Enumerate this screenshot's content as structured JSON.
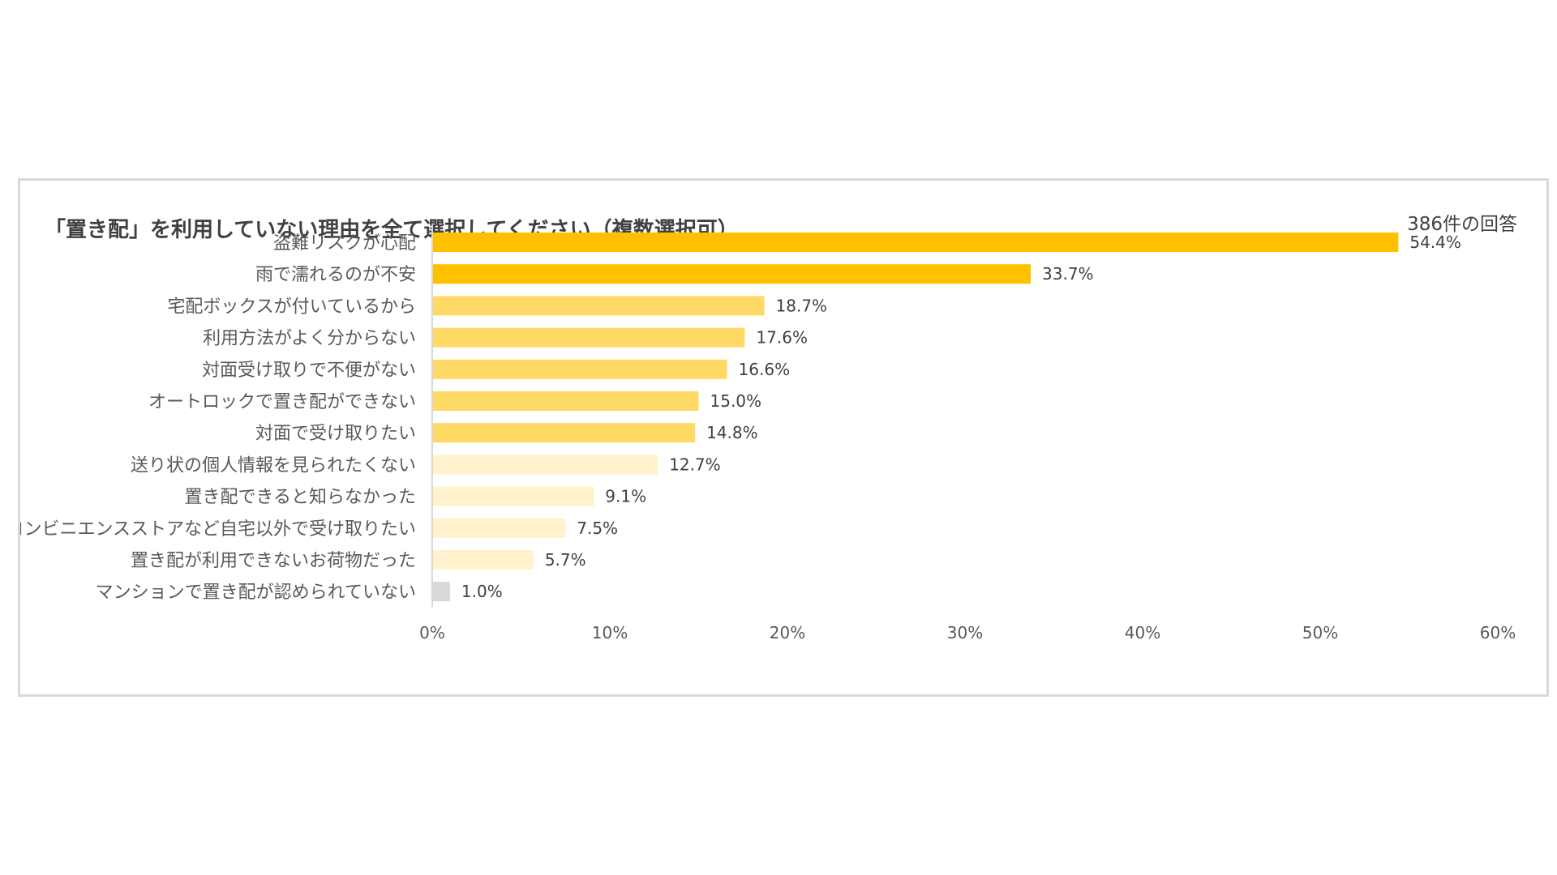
{
  "chart_data": {
    "type": "bar",
    "orientation": "horizontal",
    "title": "「置き配」を利用していない理由を全て選択してください（複数選択可）",
    "note": "386件の回答",
    "categories": [
      "盗難リスクが心配",
      "雨で濡れるのが不安",
      "宅配ボックスが付いているから",
      "利用方法がよく分からない",
      "対面受け取りで不便がない",
      "オートロックで置き配ができない",
      "対面で受け取りたい",
      "送り状の個人情報を見られたくない",
      "置き配できると知らなかった",
      "コンビニエンスストアなど自宅以外で受け取りたい",
      "置き配が利用できないお荷物だった",
      "マンションで置き配が認められていない"
    ],
    "values": [
      54.4,
      33.7,
      18.7,
      17.6,
      16.6,
      15.0,
      14.8,
      12.7,
      9.1,
      7.5,
      5.7,
      1.0
    ],
    "value_labels": [
      "54.4%",
      "33.7%",
      "18.7%",
      "17.6%",
      "16.6%",
      "15.0%",
      "14.8%",
      "12.7%",
      "9.1%",
      "7.5%",
      "5.7%",
      "1.0%"
    ],
    "bar_colors": [
      "#ffc000",
      "#ffc000",
      "#ffd966",
      "#ffd966",
      "#ffd966",
      "#ffd966",
      "#ffd966",
      "#fff2cc",
      "#fff2cc",
      "#fff2cc",
      "#fff2cc",
      "#d9d9d9"
    ],
    "xlim": [
      0,
      60
    ],
    "xticks": [
      "0%",
      "10%",
      "20%",
      "30%",
      "40%",
      "50%",
      "60%"
    ],
    "xlabel": "",
    "ylabel": "",
    "grid": false,
    "legend": "none"
  }
}
